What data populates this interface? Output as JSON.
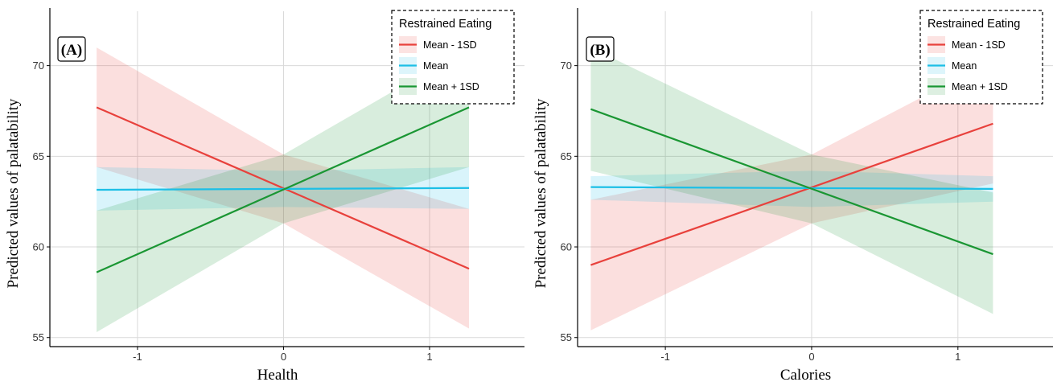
{
  "colors": {
    "mean_minus": "#e8413c",
    "mean": "#1cbfe6",
    "mean_plus": "#1a9633",
    "grid": "#d9d9d9",
    "axis": "#000000"
  },
  "chart_data": [
    {
      "type": "line",
      "panel_label": "(A)",
      "xlabel": "Health",
      "ylabel": "Predicted values of palatability",
      "xlim": [
        -1.6,
        1.65
      ],
      "ylim": [
        54.5,
        73
      ],
      "x_ticks": [
        -1,
        0,
        1
      ],
      "x_tick_labels": [
        "-1",
        "0",
        "1"
      ],
      "y_ticks": [
        55,
        60,
        65,
        70
      ],
      "y_tick_labels": [
        "55",
        "60",
        "65",
        "70"
      ],
      "grid": true,
      "legend": {
        "title": "Restrained Eating",
        "position": "top-right"
      },
      "series": [
        {
          "name": "Mean - 1SD",
          "color_key": "mean_minus",
          "x": [
            -1.28,
            1.27
          ],
          "y": [
            67.7,
            58.8
          ],
          "ci_lower": [
            64.4,
            55.5
          ],
          "ci_upper": [
            71.0,
            62.1
          ],
          "ci_center_y": 63.2,
          "ci_center_half_width": 1.9
        },
        {
          "name": "Mean",
          "color_key": "mean",
          "x": [
            -1.28,
            1.27
          ],
          "y": [
            63.15,
            63.25
          ],
          "ci_lower": [
            62.0,
            62.1
          ],
          "ci_upper": [
            64.4,
            64.4
          ],
          "ci_center_y": 63.2,
          "ci_center_half_width": 1.0
        },
        {
          "name": "Mean + 1SD",
          "color_key": "mean_plus",
          "x": [
            -1.28,
            1.27
          ],
          "y": [
            58.6,
            67.7
          ],
          "ci_lower": [
            55.3,
            64.4
          ],
          "ci_upper": [
            62.0,
            71.0
          ],
          "ci_center_y": 63.2,
          "ci_center_half_width": 1.9
        }
      ]
    },
    {
      "type": "line",
      "panel_label": "(B)",
      "xlabel": "Calories",
      "ylabel": "Predicted values of palatability",
      "xlim": [
        -1.6,
        1.65
      ],
      "ylim": [
        54.5,
        73
      ],
      "x_ticks": [
        -1,
        0,
        1
      ],
      "x_tick_labels": [
        "-1",
        "0",
        "1"
      ],
      "y_ticks": [
        55,
        60,
        65,
        70
      ],
      "y_tick_labels": [
        "55",
        "60",
        "65",
        "70"
      ],
      "grid": true,
      "legend": {
        "title": "Restrained Eating",
        "position": "top-right"
      },
      "series": [
        {
          "name": "Mean - 1SD",
          "color_key": "mean_minus",
          "x": [
            -1.51,
            1.24
          ],
          "y": [
            59.0,
            66.8
          ],
          "ci_lower": [
            55.4,
            63.5
          ],
          "ci_upper": [
            62.6,
            70.3
          ],
          "ci_center_y": 63.2,
          "ci_center_half_width": 1.9
        },
        {
          "name": "Mean",
          "color_key": "mean",
          "x": [
            -1.51,
            1.24
          ],
          "y": [
            63.3,
            63.2
          ],
          "ci_lower": [
            62.6,
            62.5
          ],
          "ci_upper": [
            63.9,
            63.9
          ],
          "ci_center_y": 63.2,
          "ci_center_half_width": 1.0
        },
        {
          "name": "Mean + 1SD",
          "color_key": "mean_plus",
          "x": [
            -1.51,
            1.24
          ],
          "y": [
            67.6,
            59.6
          ],
          "ci_lower": [
            64.2,
            56.3
          ],
          "ci_upper": [
            71.0,
            63.0
          ],
          "ci_center_y": 63.2,
          "ci_center_half_width": 1.9
        }
      ]
    }
  ]
}
